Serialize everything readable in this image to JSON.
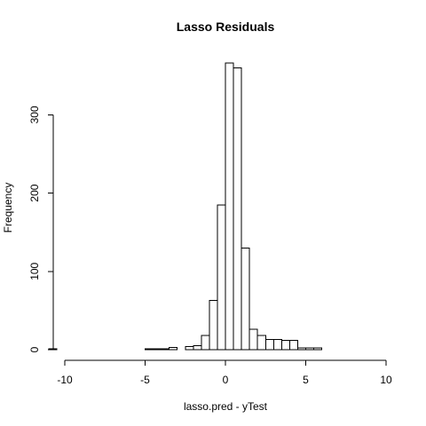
{
  "chart_data": {
    "type": "bar",
    "title": "Lasso Residuals",
    "xlabel": "lasso.pred - yTest",
    "ylabel": "Frequency",
    "xlim": [
      -11,
      10
    ],
    "ylim": [
      0,
      370
    ],
    "bin_width": 0.5,
    "x_ticks": [
      -10,
      -5,
      0,
      5,
      10
    ],
    "y_ticks": [
      0,
      100,
      200,
      300
    ],
    "grid": false,
    "bins": [
      {
        "x0": -11.0,
        "x1": -10.5,
        "count": 1
      },
      {
        "x0": -10.5,
        "x1": -10.0,
        "count": 0
      },
      {
        "x0": -10.0,
        "x1": -9.5,
        "count": 0
      },
      {
        "x0": -9.5,
        "x1": -9.0,
        "count": 0
      },
      {
        "x0": -9.0,
        "x1": -8.5,
        "count": 0
      },
      {
        "x0": -8.5,
        "x1": -8.0,
        "count": 0
      },
      {
        "x0": -8.0,
        "x1": -7.5,
        "count": 0
      },
      {
        "x0": -7.5,
        "x1": -7.0,
        "count": 0
      },
      {
        "x0": -7.0,
        "x1": -6.5,
        "count": 0
      },
      {
        "x0": -6.5,
        "x1": -6.0,
        "count": 0
      },
      {
        "x0": -6.0,
        "x1": -5.5,
        "count": 0
      },
      {
        "x0": -5.5,
        "x1": -5.0,
        "count": 0
      },
      {
        "x0": -5.0,
        "x1": -4.5,
        "count": 1
      },
      {
        "x0": -4.5,
        "x1": -4.0,
        "count": 1
      },
      {
        "x0": -4.0,
        "x1": -3.5,
        "count": 1
      },
      {
        "x0": -3.5,
        "x1": -3.0,
        "count": 3
      },
      {
        "x0": -3.0,
        "x1": -2.5,
        "count": 0
      },
      {
        "x0": -2.5,
        "x1": -2.0,
        "count": 4
      },
      {
        "x0": -2.0,
        "x1": -1.5,
        "count": 5
      },
      {
        "x0": -1.5,
        "x1": -1.0,
        "count": 18
      },
      {
        "x0": -1.0,
        "x1": -0.5,
        "count": 63
      },
      {
        "x0": -0.5,
        "x1": 0.0,
        "count": 185
      },
      {
        "x0": 0.0,
        "x1": 0.5,
        "count": 366
      },
      {
        "x0": 0.5,
        "x1": 1.0,
        "count": 360
      },
      {
        "x0": 1.0,
        "x1": 1.5,
        "count": 130
      },
      {
        "x0": 1.5,
        "x1": 2.0,
        "count": 26
      },
      {
        "x0": 2.0,
        "x1": 2.5,
        "count": 18
      },
      {
        "x0": 2.5,
        "x1": 3.0,
        "count": 13
      },
      {
        "x0": 3.0,
        "x1": 3.5,
        "count": 13
      },
      {
        "x0": 3.5,
        "x1": 4.0,
        "count": 12
      },
      {
        "x0": 4.0,
        "x1": 4.5,
        "count": 12
      },
      {
        "x0": 4.5,
        "x1": 5.0,
        "count": 2
      },
      {
        "x0": 5.0,
        "x1": 5.5,
        "count": 2
      },
      {
        "x0": 5.5,
        "x1": 6.0,
        "count": 2
      }
    ]
  }
}
